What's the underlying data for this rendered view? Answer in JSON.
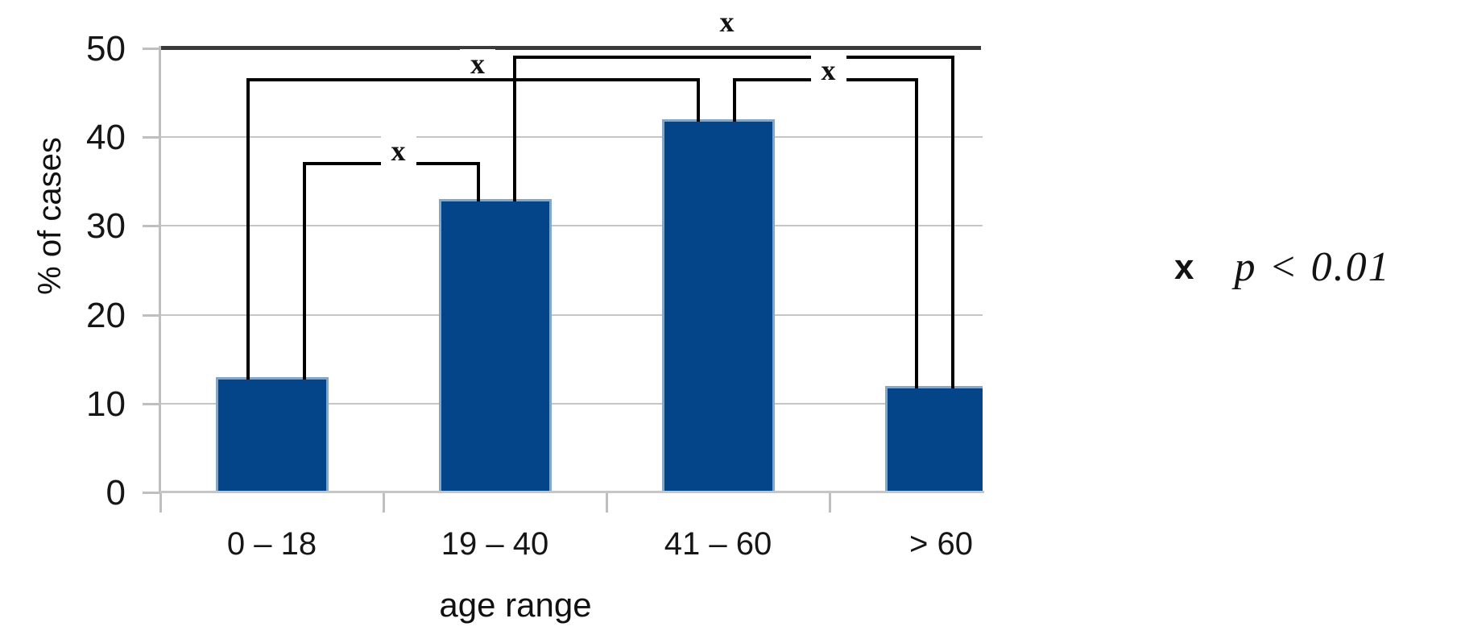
{
  "figure": {
    "background_color": "#ffffff",
    "kind": "bar chart with statistical significance brackets"
  },
  "chart_data": {
    "type": "bar",
    "title": "",
    "xlabel": "age range",
    "ylabel": "% of cases",
    "categories": [
      "0 – 18",
      "19 – 40",
      "41 – 60",
      "> 60"
    ],
    "values": [
      13,
      33,
      42,
      12
    ],
    "ylim": [
      0,
      50
    ],
    "yticks": [
      0,
      10,
      20,
      30,
      40,
      50
    ],
    "grid": "horizontal, light gray",
    "bar_color": "#04458a",
    "bar_border_color": "#82a7c9",
    "gridline_color": "#c6c6c6",
    "axis_top_border_color": "#3a3a3a",
    "bracket_color": "#000000",
    "significance": {
      "marker": "x",
      "meaning": "p < 0.01",
      "brackets": [
        {
          "between": [
            0,
            1
          ],
          "label": "x",
          "line_value": 37
        },
        {
          "between": [
            0,
            2
          ],
          "label": "x",
          "line_value": 46.5
        },
        {
          "between": [
            2,
            3
          ],
          "label": "x",
          "line_value": 46.5
        },
        {
          "between": [
            1,
            3
          ],
          "label": "x",
          "line_value": 49
        }
      ]
    },
    "legend": {
      "marker": "x",
      "text": "p < 0.01",
      "position": "right of plot, mid height"
    }
  }
}
